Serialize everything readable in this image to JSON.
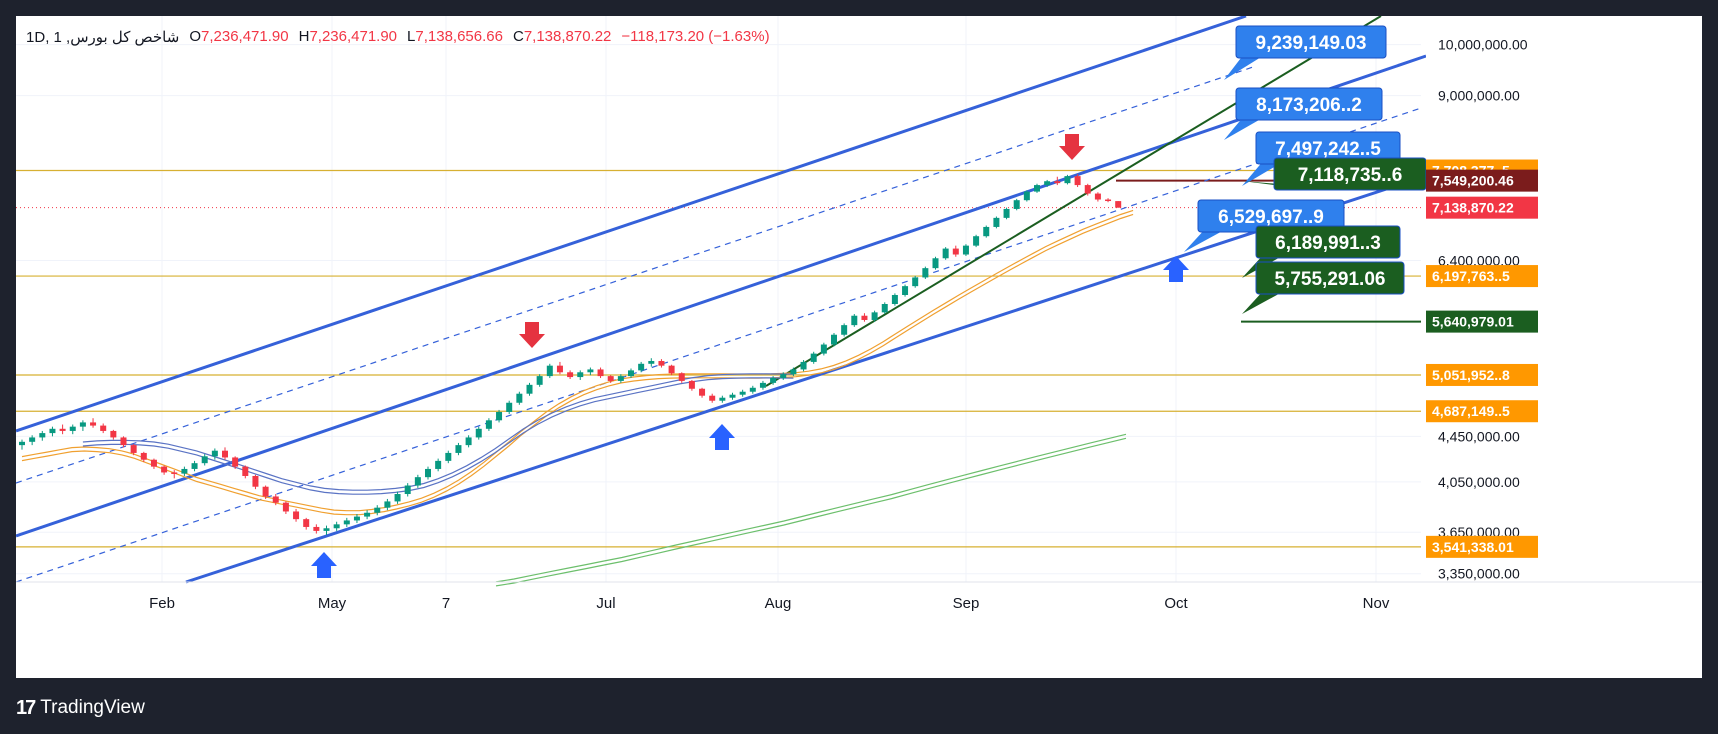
{
  "header": {
    "symbol": "شاخص كل بورس",
    "interval": "1D",
    "open_label": "O",
    "open": "7,236,471.90",
    "high_label": "H",
    "high": "7,236,471.90",
    "low_label": "L",
    "low": "7,138,656.66",
    "close_label": "C",
    "close": "7,138,870.22",
    "change": "−118,173.20 (−1.63%)"
  },
  "footer": {
    "brand": "TradingView",
    "logo_icon": "tradingview-logo-icon"
  },
  "colors": {
    "up": "#089981",
    "down": "#f23645",
    "channel": "#3561d9",
    "trend": "#1b5e20",
    "sma_fast": "#f0a030",
    "sma_mid": "#5a73c4",
    "sma_slow": "#6cbf6c",
    "level": "#d7b032",
    "label_blue": "#2f80ed",
    "label_green": "#1b5e20",
    "label_orange": "#ff9800",
    "label_dark_red": "#7b1c1c",
    "label_red": "#f23645"
  },
  "chart_data": {
    "type": "candlestick",
    "scale": "log",
    "ylim": [
      3300000,
      10500000
    ],
    "x_ticks": [
      "Feb",
      "May",
      "7",
      "Jul",
      "Aug",
      "Sep",
      "Oct",
      "Nov"
    ],
    "y_ticks": [
      {
        "label": "10,000,000.00",
        "value": 10000000
      },
      {
        "label": "9,000,000.00",
        "value": 9000000
      },
      {
        "label": "6,400,000.00",
        "value": 6400000
      },
      {
        "label": "4,450,000.00",
        "value": 4450000
      },
      {
        "label": "4,050,000.00",
        "value": 4050000
      },
      {
        "label": "3,650,000.00",
        "value": 3650000
      },
      {
        "label": "3,350,000.00",
        "value": 3350000
      }
    ],
    "horizontal_levels": [
      {
        "label": "7,708,377..5",
        "value": 7708377,
        "color": "#ff9800"
      },
      {
        "label": "6,197,763..5",
        "value": 6197763,
        "color": "#ff9800"
      },
      {
        "label": "5,051,952..8",
        "value": 5051952,
        "color": "#ff9800"
      },
      {
        "label": "4,687,149..5",
        "value": 4687149,
        "color": "#ff9800"
      },
      {
        "label": "3,541,338.01",
        "value": 3541338,
        "color": "#ff9800"
      }
    ],
    "axis_price_labels": [
      {
        "label": "7,549,200.46",
        "value": 7549200,
        "color": "#7b1c1c"
      },
      {
        "label": "7,138,870.22",
        "value": 7138870,
        "color": "#f23645"
      },
      {
        "label": "5,640,979.01",
        "value": 5640979,
        "color": "#1b5e20"
      }
    ],
    "projection_labels": [
      {
        "label": "9,239,149.03",
        "value": 9239149,
        "color": "#2f80ed"
      },
      {
        "label": "8,173,206..2",
        "value": 8173206,
        "color": "#2f80ed"
      },
      {
        "label": "7,497,242..5",
        "value": 7497242,
        "color": "#2f80ed"
      },
      {
        "label": "7,118,735..6",
        "value": 7118735,
        "color": "#1b5e20"
      },
      {
        "label": "6,529,697..9",
        "value": 6529697,
        "color": "#2f80ed"
      },
      {
        "label": "6,189,991..3",
        "value": 6189991,
        "color": "#1b5e20"
      },
      {
        "label": "5,755,291.06",
        "value": 5755291,
        "color": "#1b5e20"
      }
    ],
    "candles": [
      {
        "o": 4370000,
        "h": 4420000,
        "l": 4330000,
        "c": 4400000
      },
      {
        "o": 4400000,
        "h": 4460000,
        "l": 4370000,
        "c": 4440000
      },
      {
        "o": 4440000,
        "h": 4500000,
        "l": 4410000,
        "c": 4480000
      },
      {
        "o": 4480000,
        "h": 4540000,
        "l": 4450000,
        "c": 4520000
      },
      {
        "o": 4520000,
        "h": 4560000,
        "l": 4470000,
        "c": 4500000
      },
      {
        "o": 4500000,
        "h": 4560000,
        "l": 4470000,
        "c": 4540000
      },
      {
        "o": 4540000,
        "h": 4600000,
        "l": 4500000,
        "c": 4580000
      },
      {
        "o": 4580000,
        "h": 4620000,
        "l": 4530000,
        "c": 4550000
      },
      {
        "o": 4550000,
        "h": 4570000,
        "l": 4480000,
        "c": 4500000
      },
      {
        "o": 4500000,
        "h": 4510000,
        "l": 4420000,
        "c": 4440000
      },
      {
        "o": 4440000,
        "h": 4450000,
        "l": 4350000,
        "c": 4370000
      },
      {
        "o": 4370000,
        "h": 4380000,
        "l": 4280000,
        "c": 4300000
      },
      {
        "o": 4300000,
        "h": 4310000,
        "l": 4220000,
        "c": 4240000
      },
      {
        "o": 4240000,
        "h": 4250000,
        "l": 4160000,
        "c": 4180000
      },
      {
        "o": 4180000,
        "h": 4190000,
        "l": 4110000,
        "c": 4130000
      },
      {
        "o": 4130000,
        "h": 4150000,
        "l": 4080000,
        "c": 4120000
      },
      {
        "o": 4120000,
        "h": 4180000,
        "l": 4100000,
        "c": 4160000
      },
      {
        "o": 4160000,
        "h": 4230000,
        "l": 4140000,
        "c": 4210000
      },
      {
        "o": 4210000,
        "h": 4290000,
        "l": 4190000,
        "c": 4270000
      },
      {
        "o": 4270000,
        "h": 4340000,
        "l": 4240000,
        "c": 4320000
      },
      {
        "o": 4320000,
        "h": 4350000,
        "l": 4240000,
        "c": 4260000
      },
      {
        "o": 4260000,
        "h": 4270000,
        "l": 4160000,
        "c": 4180000
      },
      {
        "o": 4180000,
        "h": 4190000,
        "l": 4080000,
        "c": 4100000
      },
      {
        "o": 4100000,
        "h": 4110000,
        "l": 3990000,
        "c": 4010000
      },
      {
        "o": 4010000,
        "h": 4020000,
        "l": 3910000,
        "c": 3930000
      },
      {
        "o": 3930000,
        "h": 3950000,
        "l": 3860000,
        "c": 3880000
      },
      {
        "o": 3880000,
        "h": 3890000,
        "l": 3790000,
        "c": 3810000
      },
      {
        "o": 3810000,
        "h": 3830000,
        "l": 3730000,
        "c": 3750000
      },
      {
        "o": 3750000,
        "h": 3760000,
        "l": 3670000,
        "c": 3690000
      },
      {
        "o": 3690000,
        "h": 3710000,
        "l": 3640000,
        "c": 3660000
      },
      {
        "o": 3660000,
        "h": 3700000,
        "l": 3630000,
        "c": 3680000
      },
      {
        "o": 3680000,
        "h": 3730000,
        "l": 3660000,
        "c": 3710000
      },
      {
        "o": 3710000,
        "h": 3760000,
        "l": 3690000,
        "c": 3740000
      },
      {
        "o": 3740000,
        "h": 3790000,
        "l": 3720000,
        "c": 3770000
      },
      {
        "o": 3770000,
        "h": 3820000,
        "l": 3750000,
        "c": 3800000
      },
      {
        "o": 3800000,
        "h": 3860000,
        "l": 3780000,
        "c": 3840000
      },
      {
        "o": 3840000,
        "h": 3910000,
        "l": 3820000,
        "c": 3890000
      },
      {
        "o": 3890000,
        "h": 3970000,
        "l": 3870000,
        "c": 3950000
      },
      {
        "o": 3950000,
        "h": 4040000,
        "l": 3930000,
        "c": 4020000
      },
      {
        "o": 4020000,
        "h": 4110000,
        "l": 4000000,
        "c": 4090000
      },
      {
        "o": 4090000,
        "h": 4180000,
        "l": 4070000,
        "c": 4160000
      },
      {
        "o": 4160000,
        "h": 4250000,
        "l": 4140000,
        "c": 4230000
      },
      {
        "o": 4230000,
        "h": 4320000,
        "l": 4210000,
        "c": 4300000
      },
      {
        "o": 4300000,
        "h": 4390000,
        "l": 4280000,
        "c": 4370000
      },
      {
        "o": 4370000,
        "h": 4460000,
        "l": 4350000,
        "c": 4440000
      },
      {
        "o": 4440000,
        "h": 4540000,
        "l": 4420000,
        "c": 4520000
      },
      {
        "o": 4520000,
        "h": 4620000,
        "l": 4500000,
        "c": 4600000
      },
      {
        "o": 4600000,
        "h": 4700000,
        "l": 4580000,
        "c": 4680000
      },
      {
        "o": 4680000,
        "h": 4790000,
        "l": 4660000,
        "c": 4770000
      },
      {
        "o": 4770000,
        "h": 4880000,
        "l": 4750000,
        "c": 4860000
      },
      {
        "o": 4860000,
        "h": 4970000,
        "l": 4840000,
        "c": 4950000
      },
      {
        "o": 4950000,
        "h": 5060000,
        "l": 4930000,
        "c": 5040000
      },
      {
        "o": 5040000,
        "h": 5170000,
        "l": 5020000,
        "c": 5150000
      },
      {
        "o": 5150000,
        "h": 5190000,
        "l": 5060000,
        "c": 5080000
      },
      {
        "o": 5080000,
        "h": 5100000,
        "l": 5010000,
        "c": 5030000
      },
      {
        "o": 5030000,
        "h": 5100000,
        "l": 5000000,
        "c": 5080000
      },
      {
        "o": 5080000,
        "h": 5130000,
        "l": 5050000,
        "c": 5110000
      },
      {
        "o": 5110000,
        "h": 5130000,
        "l": 5020000,
        "c": 5040000
      },
      {
        "o": 5040000,
        "h": 5050000,
        "l": 4970000,
        "c": 4990000
      },
      {
        "o": 4990000,
        "h": 5060000,
        "l": 4970000,
        "c": 5040000
      },
      {
        "o": 5040000,
        "h": 5120000,
        "l": 5020000,
        "c": 5100000
      },
      {
        "o": 5100000,
        "h": 5190000,
        "l": 5080000,
        "c": 5170000
      },
      {
        "o": 5170000,
        "h": 5230000,
        "l": 5140000,
        "c": 5200000
      },
      {
        "o": 5200000,
        "h": 5220000,
        "l": 5130000,
        "c": 5150000
      },
      {
        "o": 5150000,
        "h": 5160000,
        "l": 5050000,
        "c": 5070000
      },
      {
        "o": 5070000,
        "h": 5080000,
        "l": 4970000,
        "c": 4990000
      },
      {
        "o": 4990000,
        "h": 5000000,
        "l": 4890000,
        "c": 4910000
      },
      {
        "o": 4910000,
        "h": 4920000,
        "l": 4820000,
        "c": 4840000
      },
      {
        "o": 4840000,
        "h": 4860000,
        "l": 4770000,
        "c": 4790000
      },
      {
        "o": 4790000,
        "h": 4840000,
        "l": 4770000,
        "c": 4820000
      },
      {
        "o": 4820000,
        "h": 4870000,
        "l": 4800000,
        "c": 4850000
      },
      {
        "o": 4850000,
        "h": 4900000,
        "l": 4830000,
        "c": 4880000
      },
      {
        "o": 4880000,
        "h": 4940000,
        "l": 4860000,
        "c": 4920000
      },
      {
        "o": 4920000,
        "h": 4990000,
        "l": 4900000,
        "c": 4970000
      },
      {
        "o": 4970000,
        "h": 5040000,
        "l": 4950000,
        "c": 5020000
      },
      {
        "o": 5020000,
        "h": 5080000,
        "l": 5000000,
        "c": 5060000
      },
      {
        "o": 5060000,
        "h": 5130000,
        "l": 5040000,
        "c": 5110000
      },
      {
        "o": 5110000,
        "h": 5210000,
        "l": 5090000,
        "c": 5190000
      },
      {
        "o": 5190000,
        "h": 5300000,
        "l": 5170000,
        "c": 5280000
      },
      {
        "o": 5280000,
        "h": 5400000,
        "l": 5260000,
        "c": 5380000
      },
      {
        "o": 5380000,
        "h": 5510000,
        "l": 5360000,
        "c": 5490000
      },
      {
        "o": 5490000,
        "h": 5620000,
        "l": 5470000,
        "c": 5600000
      },
      {
        "o": 5600000,
        "h": 5730000,
        "l": 5580000,
        "c": 5710000
      },
      {
        "o": 5710000,
        "h": 5740000,
        "l": 5640000,
        "c": 5660000
      },
      {
        "o": 5660000,
        "h": 5770000,
        "l": 5640000,
        "c": 5750000
      },
      {
        "o": 5750000,
        "h": 5870000,
        "l": 5730000,
        "c": 5850000
      },
      {
        "o": 5850000,
        "h": 5980000,
        "l": 5830000,
        "c": 5960000
      },
      {
        "o": 5960000,
        "h": 6090000,
        "l": 5940000,
        "c": 6070000
      },
      {
        "o": 6070000,
        "h": 6200000,
        "l": 6050000,
        "c": 6180000
      },
      {
        "o": 6180000,
        "h": 6320000,
        "l": 6160000,
        "c": 6300000
      },
      {
        "o": 6300000,
        "h": 6450000,
        "l": 6280000,
        "c": 6430000
      },
      {
        "o": 6430000,
        "h": 6580000,
        "l": 6410000,
        "c": 6560000
      },
      {
        "o": 6560000,
        "h": 6600000,
        "l": 6450000,
        "c": 6480000
      },
      {
        "o": 6480000,
        "h": 6620000,
        "l": 6460000,
        "c": 6600000
      },
      {
        "o": 6600000,
        "h": 6750000,
        "l": 6580000,
        "c": 6730000
      },
      {
        "o": 6730000,
        "h": 6880000,
        "l": 6710000,
        "c": 6860000
      },
      {
        "o": 6860000,
        "h": 7010000,
        "l": 6840000,
        "c": 6990000
      },
      {
        "o": 6990000,
        "h": 7140000,
        "l": 6970000,
        "c": 7120000
      },
      {
        "o": 7120000,
        "h": 7270000,
        "l": 7100000,
        "c": 7250000
      },
      {
        "o": 7250000,
        "h": 7400000,
        "l": 7230000,
        "c": 7380000
      },
      {
        "o": 7380000,
        "h": 7500000,
        "l": 7360000,
        "c": 7480000
      },
      {
        "o": 7480000,
        "h": 7560000,
        "l": 7450000,
        "c": 7540000
      },
      {
        "o": 7540000,
        "h": 7610000,
        "l": 7480000,
        "c": 7510000
      },
      {
        "o": 7510000,
        "h": 7640000,
        "l": 7490000,
        "c": 7620000
      },
      {
        "o": 7620000,
        "h": 7650000,
        "l": 7450000,
        "c": 7480000
      },
      {
        "o": 7480000,
        "h": 7500000,
        "l": 7320000,
        "c": 7350000
      },
      {
        "o": 7350000,
        "h": 7370000,
        "l": 7230000,
        "c": 7260000
      },
      {
        "o": 7260000,
        "h": 7280000,
        "l": 7220000,
        "c": 7250000
      },
      {
        "o": 7236471,
        "h": 7236471,
        "l": 7138656,
        "c": 7138870
      }
    ],
    "sma_fast": [
      4250000,
      4270000,
      4290000,
      4310000,
      4330000,
      4335000,
      4330000,
      4320000,
      4300000,
      4270000,
      4230000,
      4190000,
      4150000,
      4110000,
      4070000,
      4040000,
      4010000,
      3980000,
      3950000,
      3920000,
      3900000,
      3880000,
      3860000,
      3840000,
      3820000,
      3805000,
      3800000,
      3800000,
      3810000,
      3825000,
      3845000,
      3870000,
      3900000,
      3940000,
      3990000,
      4050000,
      4120000,
      4200000,
      4290000,
      4380000,
      4480000,
      4570000,
      4660000,
      4740000,
      4810000,
      4870000,
      4920000,
      4960000,
      4990000,
      5010000,
      5025000,
      5035000,
      5040000,
      5042000,
      5043000,
      5043000,
      5042000,
      5041000,
      5040000,
      5040000,
      5042000,
      5047000,
      5055000,
      5070000,
      5095000,
      5130000,
      5180000,
      5240000,
      5310000,
      5390000,
      5480000,
      5570000,
      5660000,
      5750000,
      5840000,
      5930000,
      6020000,
      6110000,
      6200000,
      6290000,
      6380000,
      6470000,
      6560000,
      6640000,
      6720000,
      6800000,
      6870000,
      6940000,
      7010000,
      7070000
    ],
    "sma_fast_start": 0,
    "sma_mid": [
      4380000,
      4390000,
      4395000,
      4395000,
      4390000,
      4380000,
      4360000,
      4330000,
      4300000,
      4260000,
      4220000,
      4180000,
      4140000,
      4100000,
      4060000,
      4030000,
      4000000,
      3980000,
      3970000,
      3965000,
      3965000,
      3970000,
      3980000,
      3995000,
      4020000,
      4060000,
      4110000,
      4170000,
      4240000,
      4320000,
      4410000,
      4500000,
      4580000,
      4650000,
      4710000,
      4760000,
      4800000,
      4830000,
      4860000,
      4890000,
      4920000,
      4950000,
      4980000,
      5005000,
      5025000,
      5035000,
      5040000,
      5043000,
      5042000,
      5041000,
      5040000
    ],
    "sma_mid_start": 6,
    "sma_slow": [
      3280000,
      3300000,
      3325000,
      3350000,
      3375000,
      3400000,
      3425000,
      3450000,
      3480000,
      3510000,
      3540000,
      3570000,
      3600000,
      3630000,
      3660000,
      3690000,
      3720000,
      3755000,
      3790000,
      3825000,
      3860000,
      3895000,
      3930000,
      3970000,
      4010000,
      4050000,
      4090000,
      4130000,
      4170000,
      4210000,
      4250000,
      4290000,
      4330000,
      4370000,
      4410000,
      4450000
    ],
    "sma_slow_start": 56
  }
}
